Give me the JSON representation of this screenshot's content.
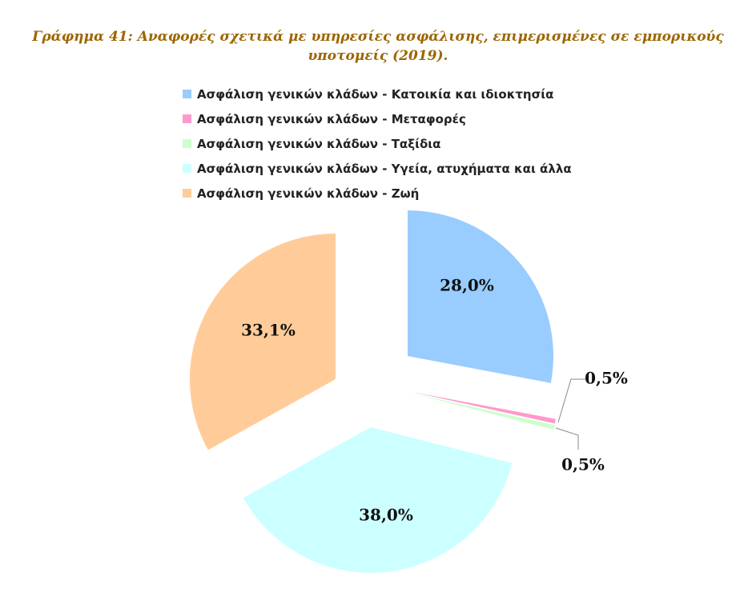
{
  "title_lines": [
    "Γράφημα 41: Αναφορές σχετικά με υπηρεσίες ασφάλισης, επιμερισμένες σε εμπορικούς",
    "υποτομείς (2019)."
  ],
  "chart_data": {
    "type": "pie",
    "title": "Γράφημα 41: Αναφορές σχετικά με υπηρεσίες ασφάλισης, επιμερισμένες σε εμπορικούς υποτομείς (2019).",
    "legend_position": "top",
    "exploded": true,
    "slices": [
      {
        "name": "Ασφάλιση γενικών κλάδων - Κατοικία και ιδιοκτησία",
        "value": 28.0,
        "label": "28,0%",
        "color": "#99CCFF"
      },
      {
        "name": "Ασφάλιση γενικών κλάδων - Μεταφορές",
        "value": 0.5,
        "label": "0,5%",
        "color": "#FF99CC"
      },
      {
        "name": "Ασφάλιση γενικών κλάδων - Ταξίδια",
        "value": 0.5,
        "label": "0,5%",
        "color": "#CCFFCC"
      },
      {
        "name": "Ασφάλιση γενικών κλάδων - Υγεία, ατυχήματα και άλλα",
        "value": 38.0,
        "label": "38,0%",
        "color": "#CCFFFF"
      },
      {
        "name": "Ασφάλιση γενικών κλάδων - Ζωή",
        "value": 33.1,
        "label": "33,1%",
        "color": "#FFCC99"
      }
    ]
  }
}
